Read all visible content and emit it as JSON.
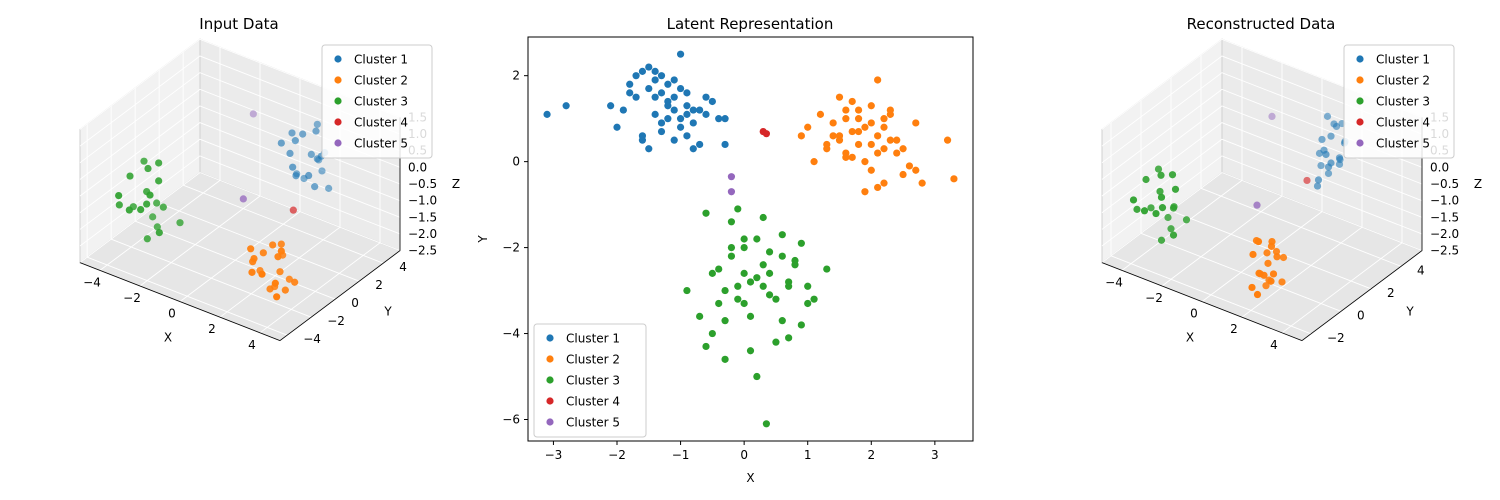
{
  "figure": {
    "panels": [
      {
        "title": "Input Data"
      },
      {
        "title": "Latent Representation"
      },
      {
        "title": "Reconstructed Data"
      }
    ]
  },
  "legend": [
    "Cluster 1",
    "Cluster 2",
    "Cluster 3",
    "Cluster 4",
    "Cluster 5"
  ],
  "colors": [
    "#1f77b4",
    "#ff7f0e",
    "#2ca02c",
    "#d62728",
    "#9467bd"
  ],
  "chart_data": [
    {
      "type": "scatter",
      "projection": "3d",
      "title": "Input Data",
      "xlabel": "X",
      "ylabel": "Y",
      "zlabel": "Z",
      "xticks": [
        "−4",
        "−2",
        "0",
        "2",
        "4"
      ],
      "yticks": [
        "−4",
        "−2",
        "0",
        "2",
        "4"
      ],
      "zticks": [
        "−2.5",
        "−2.0",
        "−1.5",
        "−1.0",
        "−0.5",
        "0.0",
        "0.5",
        "1.0",
        "1.5"
      ],
      "xlim": [
        -5,
        5
      ],
      "ylim": [
        -4,
        5
      ],
      "zlim": [
        -2.5,
        1.5
      ],
      "legend_position": "upper right",
      "series": [
        {
          "name": "Cluster 1",
          "x": [
            1.5,
            1.8,
            2.2,
            2.6,
            1.2,
            2.0,
            2.4,
            1.6,
            2.8,
            1.9,
            2.3,
            1.4,
            2.1,
            2.7,
            1.7,
            2.5,
            1.3,
            2.9,
            2.0,
            1.8
          ],
          "y": [
            2.0,
            2.5,
            3.0,
            2.2,
            1.8,
            3.4,
            2.6,
            2.9,
            2.4,
            1.6,
            3.2,
            2.3,
            2.7,
            3.1,
            2.1,
            1.9,
            2.8,
            2.5,
            3.3,
            2.0
          ],
          "z": [
            0.5,
            1.0,
            0.2,
            -0.3,
            0.8,
            0.0,
            1.2,
            -0.5,
            0.6,
            0.3,
            -0.2,
            1.0,
            0.4,
            -0.6,
            0.9,
            0.1,
            -0.4,
            0.7,
            1.1,
            -0.1
          ]
        },
        {
          "name": "Cluster 2",
          "x": [
            2.5,
            3.0,
            2.2,
            3.4,
            2.8,
            3.6,
            2.0,
            3.1,
            2.6,
            3.3,
            2.4,
            3.8,
            2.9,
            3.2,
            2.3,
            3.5,
            2.7,
            3.0,
            2.1,
            3.7
          ],
          "y": [
            -1.5,
            -1.0,
            -2.0,
            -1.2,
            -0.5,
            -1.8,
            -1.0,
            -2.5,
            -0.8,
            -1.6,
            -2.2,
            -1.1,
            -1.4,
            -0.6,
            -1.9,
            -2.1,
            -1.3,
            -0.9,
            -1.7,
            -2.3
          ],
          "z": [
            -1.2,
            -1.8,
            -1.0,
            -2.2,
            -1.5,
            -0.8,
            -2.0,
            -1.4,
            -2.4,
            -1.1,
            -1.6,
            -1.9,
            -0.9,
            -2.1,
            -1.3,
            -1.7,
            -2.3,
            -1.0,
            -1.5,
            -2.0
          ]
        },
        {
          "name": "Cluster 3",
          "x": [
            -3.0,
            -2.5,
            -3.5,
            -2.0,
            -3.2,
            -2.8,
            -3.8,
            -2.3,
            -3.0,
            -2.6,
            -3.4,
            -2.1,
            -3.6,
            -2.9,
            -2.4,
            -3.1,
            -2.7,
            -3.3,
            -2.2,
            -3.9
          ],
          "y": [
            -2.0,
            -1.5,
            -2.5,
            -1.0,
            -3.0,
            -2.2,
            -1.8,
            -2.8,
            -1.2,
            -2.6,
            -1.6,
            -2.4,
            -3.2,
            -1.4,
            -2.0,
            -1.8,
            -2.9,
            -1.1,
            -2.3,
            -2.7
          ],
          "z": [
            -0.5,
            -1.0,
            0.0,
            -1.5,
            -0.8,
            0.3,
            -1.2,
            -0.2,
            -1.8,
            -0.6,
            0.2,
            -1.4,
            -0.4,
            -1.0,
            0.5,
            -2.0,
            -0.7,
            -1.6,
            0.1,
            -0.9
          ]
        },
        {
          "name": "Cluster 4",
          "x": [
            2.2
          ],
          "y": [
            1.2
          ],
          "z": [
            -0.8
          ]
        },
        {
          "name": "Cluster 5",
          "x": [
            -1.0,
            0.5
          ],
          "y": [
            3.0,
            0.0
          ],
          "z": [
            0.8,
            -0.5
          ]
        }
      ]
    },
    {
      "type": "scatter",
      "title": "Latent Representation",
      "xlabel": "X",
      "ylabel": "Y",
      "xlim": [
        -3.4,
        3.6
      ],
      "ylim": [
        -6.5,
        2.9
      ],
      "xticks": [
        -3,
        -2,
        -1,
        0,
        1,
        2,
        3
      ],
      "yticks": [
        -6,
        -4,
        -2,
        0,
        2
      ],
      "xtick_labels": [
        "−3",
        "−2",
        "−1",
        "0",
        "1",
        "2",
        "3"
      ],
      "ytick_labels": [
        "−6",
        "−4",
        "−2",
        "0",
        "2"
      ],
      "legend_position": "lower left",
      "series": [
        {
          "name": "Cluster 1",
          "x": [
            -3.1,
            -2.8,
            -2.1,
            -2.0,
            -1.9,
            -1.8,
            -1.7,
            -1.6,
            -1.5,
            -1.5,
            -1.4,
            -1.4,
            -1.3,
            -1.3,
            -1.2,
            -1.2,
            -1.1,
            -1.1,
            -1.0,
            -1.0,
            -0.9,
            -0.9,
            -0.8,
            -0.7,
            -0.6,
            -0.5,
            -0.4,
            -0.3,
            -1.6,
            -1.3,
            -1.0,
            -0.8,
            -1.7,
            -1.4,
            -1.2,
            -0.9,
            -0.6,
            -1.5,
            -1.1,
            -0.8,
            -0.3,
            -1.8,
            -1.3,
            -1.0,
            -0.7,
            -1.6,
            -1.2,
            -0.9,
            -1.4,
            -1.1
          ],
          "y": [
            1.1,
            1.3,
            1.3,
            0.8,
            1.2,
            1.8,
            2.0,
            2.1,
            2.2,
            1.7,
            1.9,
            1.5,
            2.0,
            1.6,
            1.8,
            1.4,
            1.9,
            1.2,
            1.7,
            1.0,
            1.3,
            0.6,
            1.2,
            0.4,
            1.1,
            1.4,
            1.0,
            1.0,
            0.5,
            0.7,
            0.8,
            0.9,
            1.5,
            1.1,
            1.0,
            1.6,
            1.5,
            0.3,
            0.5,
            0.3,
            0.4,
            1.6,
            0.9,
            2.5,
            1.2,
            0.6,
            1.3,
            1.1,
            2.1,
            1.5
          ]
        },
        {
          "name": "Cluster 2",
          "x": [
            0.9,
            1.0,
            1.2,
            1.3,
            1.4,
            1.5,
            1.5,
            1.6,
            1.6,
            1.7,
            1.7,
            1.8,
            1.8,
            1.9,
            1.9,
            2.0,
            2.0,
            2.1,
            2.1,
            2.2,
            2.2,
            2.3,
            2.3,
            2.4,
            2.5,
            2.6,
            2.7,
            2.8,
            3.2,
            3.3,
            1.1,
            1.4,
            1.7,
            2.0,
            2.2,
            2.5,
            1.3,
            1.8,
            2.1,
            2.4,
            1.6,
            1.9,
            2.2,
            2.7,
            1.5,
            2.0,
            2.3,
            1.8,
            2.1,
            1.6
          ],
          "y": [
            0.6,
            0.8,
            1.1,
            0.3,
            0.9,
            0.5,
            1.5,
            0.2,
            1.2,
            0.7,
            1.4,
            0.4,
            1.0,
            0.0,
            0.8,
            -0.2,
            1.3,
            0.6,
            1.9,
            0.3,
            1.0,
            0.5,
            1.2,
            0.2,
            0.3,
            -0.1,
            0.9,
            -0.5,
            0.5,
            -0.4,
            0.0,
            0.6,
            0.1,
            0.9,
            -0.5,
            -0.3,
            0.4,
            0.7,
            0.2,
            0.5,
            1.0,
            -0.7,
            0.8,
            -0.2,
            0.6,
            0.4,
            1.1,
            1.2,
            -0.6,
            0.1
          ]
        },
        {
          "name": "Cluster 3",
          "x": [
            -0.9,
            -0.7,
            -0.5,
            -0.4,
            -0.3,
            -0.2,
            -0.1,
            0.0,
            0.1,
            0.2,
            0.3,
            0.4,
            0.5,
            0.6,
            0.7,
            0.8,
            0.9,
            1.0,
            1.1,
            1.3,
            -0.6,
            -0.3,
            0.0,
            0.3,
            0.6,
            0.9,
            -0.5,
            -0.2,
            0.1,
            0.4,
            0.7,
            1.0,
            -0.4,
            -0.1,
            0.2,
            0.5,
            0.8,
            -0.6,
            -0.3,
            0.0,
            0.3,
            0.6,
            -0.2,
            0.1,
            0.4,
            0.7,
            0.0,
            0.2,
            -0.1,
            0.35
          ],
          "y": [
            -3.0,
            -3.6,
            -2.6,
            -3.3,
            -4.6,
            -2.0,
            -3.2,
            -1.8,
            -4.4,
            -2.7,
            -1.3,
            -3.1,
            -4.2,
            -2.2,
            -2.9,
            -2.3,
            -3.8,
            -2.9,
            -3.2,
            -2.5,
            -1.2,
            -3.0,
            -2.6,
            -2.4,
            -3.7,
            -1.9,
            -4.0,
            -1.4,
            -3.6,
            -2.1,
            -2.8,
            -3.3,
            -2.5,
            -2.9,
            -1.8,
            -3.2,
            -2.4,
            -4.3,
            -3.7,
            -2.0,
            -2.9,
            -1.7,
            -2.2,
            -2.8,
            -2.6,
            -4.1,
            -3.3,
            -5.0,
            -1.1,
            -6.1
          ]
        },
        {
          "name": "Cluster 4",
          "x": [
            0.3,
            0.35
          ],
          "y": [
            0.7,
            0.65
          ]
        },
        {
          "name": "Cluster 5",
          "x": [
            -0.2,
            -0.2
          ],
          "y": [
            -0.35,
            -0.7
          ]
        }
      ]
    },
    {
      "type": "scatter",
      "projection": "3d",
      "title": "Reconstructed Data",
      "xlabel": "X",
      "ylabel": "Y",
      "zlabel": "Z",
      "xticks": [
        "−4",
        "−2",
        "0",
        "2",
        "4"
      ],
      "yticks": [
        "−2",
        "0",
        "2",
        "4"
      ],
      "zticks": [
        "−2.5",
        "−2.0",
        "−1.5",
        "−1.0",
        "−0.5",
        "0.0",
        "0.5",
        "1.0",
        "1.5"
      ],
      "xlim": [
        -5,
        5
      ],
      "ylim": [
        -3,
        5
      ],
      "zlim": [
        -2.5,
        1.5
      ],
      "legend_position": "upper right",
      "series": [
        {
          "name": "Cluster 1",
          "x": [
            1.8,
            2.1,
            2.4,
            1.6,
            2.0,
            2.3,
            1.9,
            2.6,
            1.7,
            2.2,
            2.5,
            1.8,
            2.1,
            2.4,
            1.9,
            2.2,
            2.0,
            2.7,
            1.6,
            2.3
          ],
          "y": [
            2.6,
            3.0,
            2.4,
            2.8,
            3.3,
            2.2,
            2.9,
            2.7,
            3.1,
            2.5,
            3.2,
            2.3,
            2.8,
            3.0,
            2.6,
            3.4,
            2.1,
            2.9,
            2.7,
            3.1
          ],
          "z": [
            0.9,
            1.3,
            0.4,
            0.0,
            1.1,
            0.7,
            -0.2,
            0.5,
            1.4,
            0.2,
            0.8,
            -0.4,
            1.0,
            0.3,
            0.6,
            1.2,
            -0.1,
            0.9,
            0.4,
            0.1
          ]
        },
        {
          "name": "Cluster 2",
          "x": [
            1.6,
            1.9,
            2.2,
            2.5,
            1.8,
            2.1,
            2.4,
            1.7,
            2.0,
            2.3,
            2.6,
            1.9,
            2.2,
            2.5,
            1.8,
            2.1,
            2.4,
            2.0,
            2.3,
            1.7
          ],
          "y": [
            -1.5,
            -1.2,
            -1.8,
            -1.0,
            -2.0,
            -1.4,
            -1.6,
            -0.8,
            -1.9,
            -1.1,
            -1.7,
            -2.2,
            -1.3,
            -0.9,
            -1.6,
            -2.1,
            -1.2,
            -1.8,
            -1.4,
            -1.0
          ],
          "z": [
            -0.8,
            -1.2,
            -1.6,
            -2.0,
            -1.0,
            -1.4,
            -1.8,
            -2.2,
            -0.6,
            -1.1,
            -1.5,
            -1.9,
            -0.9,
            -1.3,
            -1.7,
            -2.1,
            -1.2,
            -1.6,
            -0.7,
            -2.3
          ]
        },
        {
          "name": "Cluster 3",
          "x": [
            -3.0,
            -2.6,
            -3.4,
            -2.2,
            -3.1,
            -2.8,
            -3.6,
            -2.4,
            -2.9,
            -2.5,
            -3.3,
            -2.1,
            -3.5,
            -2.7,
            -2.3,
            -3.0,
            -2.6,
            -3.2,
            -2.0,
            -3.7
          ],
          "y": [
            -1.8,
            -1.4,
            -2.2,
            -1.1,
            -2.7,
            -2.0,
            -1.6,
            -2.5,
            -1.2,
            -2.3,
            -1.5,
            -2.1,
            -2.9,
            -1.3,
            -1.9,
            -1.7,
            -2.6,
            -1.0,
            -2.1,
            -2.4
          ],
          "z": [
            -0.3,
            -0.8,
            0.1,
            -1.2,
            -0.6,
            0.3,
            -1.0,
            -0.1,
            -1.6,
            -0.5,
            0.2,
            -1.3,
            -0.3,
            -0.9,
            0.4,
            -1.8,
            -0.6,
            -1.4,
            0.1,
            -0.8
          ]
        },
        {
          "name": "Cluster 4",
          "x": [
            1.5
          ],
          "y": [
            2.0
          ],
          "z": [
            -0.2
          ]
        },
        {
          "name": "Cluster 5",
          "x": [
            -1.0,
            0.5
          ],
          "y": [
            3.0,
            0.0
          ],
          "z": [
            0.8,
            -0.5
          ]
        }
      ]
    }
  ]
}
